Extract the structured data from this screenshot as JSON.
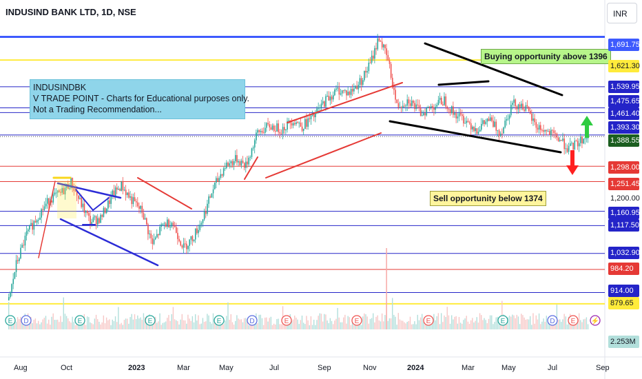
{
  "header": {
    "title": "INDUSIND BANK LTD, 1D, NSE",
    "currency": "INR"
  },
  "note": {
    "lines": [
      "INDUSINDBK",
      "V TRADE POINT - Charts for Educational purposes only.",
      "Not a Trading Recommendation..."
    ]
  },
  "callouts": {
    "buy": "Buying opportunity above 1396",
    "sell": "Sell opportunity below 1374"
  },
  "colors": {
    "blue_line": "#3f3fd6",
    "red_line": "#e53935",
    "yellow_line": "#ffeb3b",
    "bull": "#26a69a",
    "bear": "#ef5350",
    "trend_black": "#000000"
  },
  "price_axis": {
    "labels": [
      {
        "text": "1,691.75",
        "color": "#3d5afe"
      },
      {
        "text": "1,621.30",
        "color": "#ffeb3b",
        "dark": true
      },
      {
        "text": "1,539.95",
        "color": "#2424c8"
      },
      {
        "text": "1,475.65",
        "color": "#2424c8"
      },
      {
        "text": "1,461.40",
        "color": "#2424c8"
      },
      {
        "text": "1,393.30",
        "color": "#2424c8"
      },
      {
        "text": "1,388.55",
        "color": "#1b5e20"
      },
      {
        "text": "1,298.00",
        "color": "#e53935"
      },
      {
        "text": "1,251.45",
        "color": "#e53935"
      },
      {
        "text": "1,160.95",
        "color": "#2424c8"
      },
      {
        "text": "1,117.50",
        "color": "#2424c8"
      },
      {
        "text": "1,032.90",
        "color": "#2424c8"
      },
      {
        "text": "984.20",
        "color": "#e53935"
      },
      {
        "text": "914.00",
        "color": "#2424c8"
      },
      {
        "text": "879.65",
        "color": "#ffeb3b",
        "dark": true
      },
      {
        "text": "2.253M",
        "color": "#26a69a",
        "light": true
      }
    ],
    "plain_tick": "1,200.00"
  },
  "x_axis": {
    "labels": [
      {
        "text": "Aug",
        "bold": false
      },
      {
        "text": "Oct",
        "bold": false
      },
      {
        "text": "2023",
        "bold": true
      },
      {
        "text": "Mar",
        "bold": false
      },
      {
        "text": "May",
        "bold": false
      },
      {
        "text": "Jul",
        "bold": false
      },
      {
        "text": "Sep",
        "bold": false
      },
      {
        "text": "Nov",
        "bold": false
      },
      {
        "text": "2024",
        "bold": true
      },
      {
        "text": "Mar",
        "bold": false
      },
      {
        "text": "May",
        "bold": false
      },
      {
        "text": "Jul",
        "bold": false
      },
      {
        "text": "Sep",
        "bold": false
      }
    ]
  },
  "chart_data": {
    "type": "candlestick",
    "title": "INDUSIND BANK LTD, 1D, NSE",
    "ylim": [
      850,
      1720
    ],
    "horizontal_levels": [
      {
        "value": 1691.75,
        "color": "#3d5afe"
      },
      {
        "value": 1621.3,
        "color": "#ffeb3b"
      },
      {
        "value": 1539.95,
        "color": "#2424c8"
      },
      {
        "value": 1475.65,
        "color": "#2424c8"
      },
      {
        "value": 1461.4,
        "color": "#2424c8"
      },
      {
        "value": 1393.3,
        "color": "#2424c8"
      },
      {
        "value": 1298.0,
        "color": "#e53935"
      },
      {
        "value": 1251.45,
        "color": "#e53935"
      },
      {
        "value": 1160.95,
        "color": "#2424c8"
      },
      {
        "value": 1117.5,
        "color": "#2424c8"
      },
      {
        "value": 1032.9,
        "color": "#2424c8"
      },
      {
        "value": 984.2,
        "color": "#e53935"
      },
      {
        "value": 914.0,
        "color": "#2424c8"
      },
      {
        "value": 879.65,
        "color": "#ffeb3b"
      }
    ],
    "last_price": 1388.55,
    "price_path": [
      [
        0,
        890
      ],
      [
        5,
        1000
      ],
      [
        12,
        1090
      ],
      [
        20,
        1150
      ],
      [
        28,
        1200
      ],
      [
        35,
        1215
      ],
      [
        42,
        1250
      ],
      [
        48,
        1190
      ],
      [
        55,
        1130
      ],
      [
        62,
        1140
      ],
      [
        70,
        1210
      ],
      [
        76,
        1240
      ],
      [
        82,
        1200
      ],
      [
        90,
        1160
      ],
      [
        97,
        1060
      ],
      [
        104,
        1120
      ],
      [
        110,
        1130
      ],
      [
        118,
        1050
      ],
      [
        124,
        1080
      ],
      [
        130,
        1130
      ],
      [
        138,
        1230
      ],
      [
        146,
        1300
      ],
      [
        154,
        1320
      ],
      [
        160,
        1300
      ],
      [
        168,
        1400
      ],
      [
        176,
        1420
      ],
      [
        184,
        1410
      ],
      [
        192,
        1440
      ],
      [
        198,
        1420
      ],
      [
        206,
        1450
      ],
      [
        214,
        1500
      ],
      [
        222,
        1530
      ],
      [
        230,
        1520
      ],
      [
        238,
        1560
      ],
      [
        244,
        1610
      ],
      [
        250,
        1691
      ],
      [
        256,
        1620
      ],
      [
        262,
        1480
      ],
      [
        270,
        1500
      ],
      [
        278,
        1460
      ],
      [
        286,
        1480
      ],
      [
        294,
        1500
      ],
      [
        300,
        1460
      ],
      [
        308,
        1440
      ],
      [
        316,
        1410
      ],
      [
        324,
        1440
      ],
      [
        332,
        1400
      ],
      [
        340,
        1490
      ],
      [
        348,
        1480
      ],
      [
        356,
        1420
      ],
      [
        364,
        1400
      ],
      [
        372,
        1380
      ],
      [
        378,
        1350
      ],
      [
        384,
        1370
      ],
      [
        390,
        1388
      ]
    ]
  }
}
